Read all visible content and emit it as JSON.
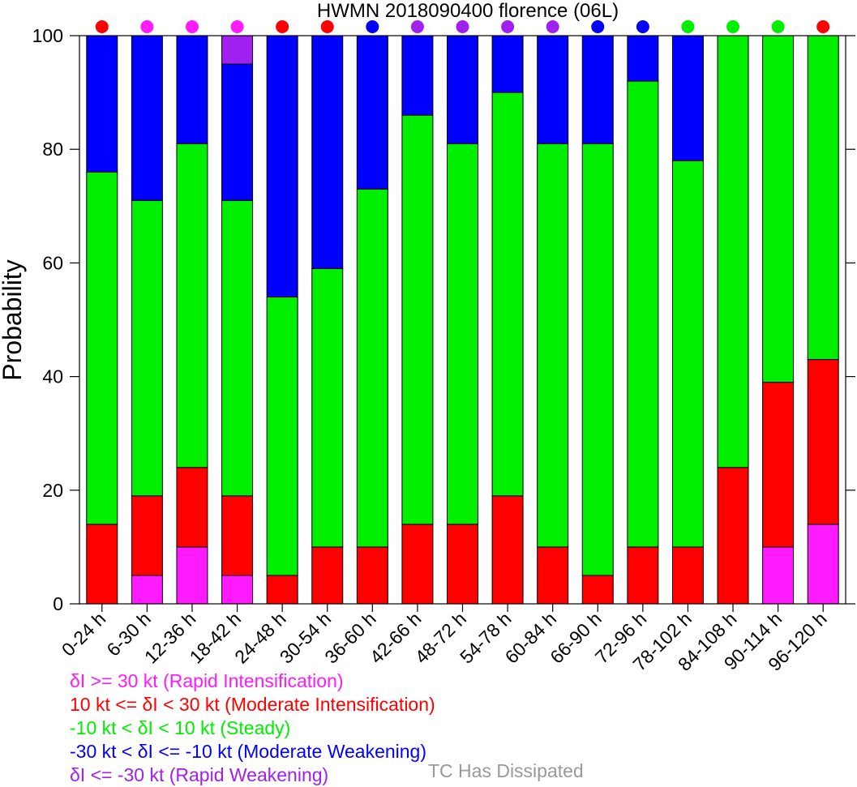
{
  "chart_data": {
    "type": "bar",
    "stacked": true,
    "title": "HWMN 2018090400 florence (06L)",
    "ylabel": "Probability",
    "ylim": [
      0,
      100
    ],
    "yticks": [
      0,
      20,
      40,
      60,
      80,
      100
    ],
    "categories": [
      "0-24 h",
      "6-30 h",
      "12-36 h",
      "18-42 h",
      "24-48 h",
      "30-54 h",
      "36-60 h",
      "42-66 h",
      "48-72 h",
      "54-78 h",
      "60-84 h",
      "66-90 h",
      "72-96 h",
      "78-102 h",
      "84-108 h",
      "90-114 h",
      "96-120 h"
    ],
    "series": [
      {
        "name": "δI >= 30 kt (Rapid Intensification)",
        "color": "#ff1aff",
        "values": [
          0,
          5,
          10,
          5,
          0,
          0,
          0,
          0,
          0,
          0,
          0,
          0,
          0,
          0,
          0,
          10,
          14
        ]
      },
      {
        "name": "10 kt <= δI < 30 kt (Moderate Intensification)",
        "color": "#ff0000",
        "values": [
          14,
          14,
          14,
          14,
          5,
          10,
          10,
          14,
          14,
          19,
          10,
          5,
          10,
          10,
          24,
          29,
          29
        ]
      },
      {
        "name": "-10 kt < δI < 10 kt (Steady)",
        "color": "#00ee00",
        "values": [
          62,
          52,
          57,
          52,
          49,
          49,
          63,
          72,
          67,
          71,
          71,
          76,
          82,
          68,
          76,
          61,
          57
        ]
      },
      {
        "name": "-30 kt < δI <= -10 kt (Moderate Weakening)",
        "color": "#0000ff",
        "values": [
          24,
          29,
          19,
          24,
          46,
          41,
          27,
          14,
          19,
          10,
          19,
          19,
          8,
          22,
          0,
          0,
          0
        ]
      },
      {
        "name": "δI <= -30 kt (Rapid Weakening)",
        "color": "#a020f0",
        "values": [
          0,
          0,
          0,
          5,
          0,
          0,
          0,
          0,
          0,
          0,
          0,
          0,
          0,
          0,
          0,
          0,
          0
        ]
      }
    ],
    "top_markers": [
      "red",
      "magenta",
      "magenta",
      "magenta",
      "red",
      "red",
      "blue",
      "purple",
      "purple",
      "purple",
      "purple",
      "blue",
      "blue",
      "green",
      "green",
      "green",
      "red"
    ],
    "marker_colors": {
      "magenta": "#ff1aff",
      "red": "#ff0000",
      "green": "#00ee00",
      "blue": "#0000ff",
      "purple": "#a020f0"
    },
    "legend_placement": "bottom-left",
    "dissipated_label": "TC Has Dissipated",
    "dissipated_color": "#999999",
    "grid": false
  }
}
